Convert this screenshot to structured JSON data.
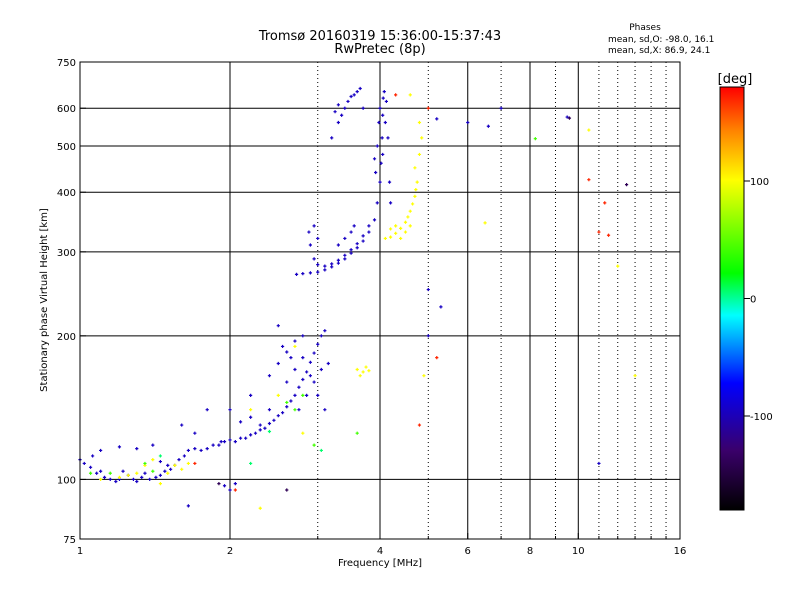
{
  "chart_data": {
    "type": "scatter",
    "title": "Tromsø 20160319 15:36:00-15:37:43",
    "subtitle": "RwPretec (8p)",
    "xlabel": "Frequency [MHz]",
    "ylabel": "Stationary phase Virtual Height [km]",
    "x_scale": "log",
    "y_scale": "log",
    "xlim": [
      1,
      16
    ],
    "ylim": [
      75,
      750
    ],
    "x_ticks": [
      1,
      2,
      4,
      6,
      8,
      10,
      16
    ],
    "x_tick_labels": [
      "1",
      "2",
      "4",
      "6",
      "8",
      "10",
      "16"
    ],
    "x_minor_ticks": [
      3,
      5,
      7,
      9,
      11,
      12,
      13,
      14,
      15
    ],
    "y_ticks": [
      75,
      100,
      200,
      300,
      400,
      500,
      600,
      750
    ],
    "y_tick_labels": [
      "75",
      "100",
      "200",
      "300",
      "400",
      "500",
      "600",
      "750"
    ],
    "grid": true,
    "info": {
      "heading": "Phases",
      "line1": "mean, sd,O: -98.0, 16.1",
      "line2": "mean, sd,X:  86.9, 24.1"
    },
    "colorbar": {
      "label": "[deg]",
      "range": [
        -180,
        180
      ],
      "ticks": [
        100,
        0,
        -100
      ],
      "tick_labels": [
        "100",
        "0",
        "-100"
      ],
      "colors": [
        "#000000",
        "#3a006a",
        "#0000ff",
        "#00ffff",
        "#00ff00",
        "#ffff00",
        "#ff8000",
        "#ff0000"
      ]
    },
    "series": [
      {
        "phase_deg": -100,
        "points": [
          [
            1.02,
            108
          ],
          [
            1.05,
            106
          ],
          [
            1.08,
            103
          ],
          [
            1.1,
            104
          ],
          [
            1.12,
            101
          ],
          [
            1.15,
            100
          ],
          [
            1.18,
            99
          ],
          [
            1.2,
            100
          ],
          [
            1.22,
            104
          ],
          [
            1.25,
            102
          ],
          [
            1.28,
            100
          ],
          [
            1.3,
            99
          ],
          [
            1.33,
            101
          ],
          [
            1.35,
            103
          ],
          [
            1.38,
            100
          ],
          [
            1.42,
            101
          ],
          [
            1.45,
            102
          ],
          [
            1.48,
            104
          ],
          [
            1.52,
            105
          ],
          [
            1.55,
            107
          ],
          [
            1.58,
            110
          ],
          [
            1.62,
            112
          ],
          [
            1.65,
            115
          ],
          [
            1.7,
            116
          ],
          [
            1.75,
            115
          ],
          [
            1.8,
            116
          ],
          [
            1.85,
            118
          ],
          [
            1.9,
            118
          ],
          [
            1.95,
            120
          ],
          [
            2.0,
            121
          ],
          [
            2.05,
            120
          ],
          [
            2.1,
            122
          ],
          [
            2.15,
            122
          ],
          [
            2.2,
            124
          ],
          [
            2.25,
            125
          ],
          [
            2.3,
            127
          ],
          [
            2.35,
            128
          ],
          [
            2.4,
            131
          ],
          [
            2.45,
            133
          ],
          [
            2.5,
            136
          ],
          [
            2.55,
            138
          ],
          [
            2.6,
            142
          ],
          [
            2.65,
            146
          ],
          [
            2.7,
            150
          ],
          [
            2.75,
            156
          ],
          [
            2.8,
            162
          ],
          [
            2.85,
            168
          ],
          [
            2.9,
            176
          ],
          [
            2.95,
            184
          ],
          [
            3.0,
            192
          ],
          [
            3.05,
            200
          ],
          [
            3.1,
            205
          ],
          [
            1.0,
            110
          ],
          [
            1.06,
            112
          ],
          [
            1.1,
            115
          ],
          [
            1.2,
            117
          ],
          [
            1.3,
            116
          ],
          [
            1.4,
            118
          ],
          [
            1.6,
            130
          ],
          [
            1.7,
            125
          ],
          [
            1.8,
            140
          ],
          [
            2.0,
            140
          ],
          [
            2.2,
            150
          ],
          [
            2.4,
            165
          ],
          [
            2.5,
            175
          ],
          [
            2.6,
            185
          ],
          [
            2.7,
            195
          ],
          [
            2.8,
            200
          ],
          [
            2.6,
            160
          ],
          [
            2.7,
            170
          ],
          [
            2.8,
            180
          ],
          [
            2.9,
            165
          ],
          [
            2.55,
            190
          ],
          [
            2.5,
            210
          ],
          [
            2.65,
            180
          ],
          [
            2.75,
            140
          ],
          [
            2.85,
            150
          ],
          [
            2.95,
            160
          ],
          [
            3.05,
            170
          ],
          [
            3.15,
            175
          ],
          [
            2.3,
            130
          ],
          [
            2.2,
            135
          ],
          [
            2.1,
            132
          ],
          [
            2.4,
            140
          ],
          [
            1.95,
            97
          ],
          [
            2.0,
            95
          ],
          [
            2.05,
            98
          ],
          [
            1.65,
            88
          ],
          [
            1.92,
            120
          ],
          [
            1.5,
            107
          ],
          [
            1.45,
            109
          ],
          [
            2.72,
            269
          ],
          [
            2.8,
            270
          ],
          [
            2.9,
            271
          ],
          [
            3.0,
            272
          ],
          [
            3.1,
            275
          ],
          [
            3.2,
            279
          ],
          [
            3.3,
            284
          ],
          [
            3.4,
            290
          ],
          [
            3.5,
            298
          ],
          [
            3.6,
            306
          ],
          [
            3.7,
            316
          ],
          [
            3.8,
            330
          ],
          [
            3.9,
            350
          ],
          [
            3.95,
            380
          ],
          [
            4.0,
            420
          ],
          [
            4.02,
            460
          ],
          [
            4.04,
            520
          ],
          [
            4.05,
            580
          ],
          [
            4.06,
            630
          ],
          [
            2.95,
            290
          ],
          [
            3.0,
            282
          ],
          [
            3.1,
            280
          ],
          [
            3.2,
            283
          ],
          [
            3.3,
            288
          ],
          [
            3.4,
            295
          ],
          [
            3.5,
            303
          ],
          [
            3.6,
            312
          ],
          [
            3.7,
            324
          ],
          [
            3.8,
            340
          ],
          [
            2.9,
            310
          ],
          [
            2.88,
            330
          ],
          [
            2.95,
            340
          ],
          [
            3.0,
            320
          ],
          [
            3.3,
            560
          ],
          [
            3.35,
            580
          ],
          [
            3.4,
            600
          ],
          [
            3.45,
            620
          ],
          [
            3.5,
            635
          ],
          [
            3.55,
            640
          ],
          [
            3.6,
            650
          ],
          [
            3.65,
            660
          ],
          [
            3.3,
            610
          ],
          [
            3.25,
            590
          ],
          [
            3.2,
            520
          ],
          [
            3.7,
            600
          ],
          [
            3.9,
            470
          ],
          [
            3.92,
            440
          ],
          [
            3.95,
            500
          ],
          [
            3.98,
            560
          ],
          [
            4.0,
            600
          ],
          [
            4.08,
            650
          ],
          [
            4.12,
            620
          ],
          [
            4.1,
            560
          ],
          [
            4.15,
            520
          ],
          [
            4.05,
            480
          ],
          [
            4.18,
            420
          ],
          [
            4.2,
            380
          ],
          [
            3.5,
            330
          ],
          [
            3.55,
            340
          ],
          [
            3.4,
            320
          ],
          [
            3.3,
            310
          ],
          [
            5.0,
            200
          ],
          [
            5.0,
            250
          ],
          [
            5.3,
            230
          ],
          [
            5.2,
            570
          ],
          [
            6.0,
            560
          ],
          [
            6.6,
            550
          ],
          [
            9.5,
            575
          ],
          [
            7.0,
            600
          ],
          [
            11.0,
            108
          ],
          [
            3.1,
            140
          ],
          [
            3.0,
            150
          ]
        ]
      },
      {
        "phase_deg": 100,
        "points": [
          [
            4.1,
            320
          ],
          [
            4.2,
            322
          ],
          [
            4.3,
            328
          ],
          [
            4.4,
            336
          ],
          [
            4.5,
            346
          ],
          [
            4.55,
            355
          ],
          [
            4.6,
            365
          ],
          [
            4.65,
            378
          ],
          [
            4.7,
            392
          ],
          [
            4.72,
            405
          ],
          [
            4.75,
            420
          ],
          [
            4.7,
            450
          ],
          [
            4.8,
            480
          ],
          [
            4.85,
            520
          ],
          [
            4.2,
            335
          ],
          [
            4.3,
            340
          ],
          [
            4.4,
            320
          ],
          [
            4.5,
            330
          ],
          [
            4.6,
            340
          ],
          [
            3.6,
            170
          ],
          [
            3.7,
            168
          ],
          [
            3.75,
            172
          ],
          [
            3.8,
            169
          ],
          [
            3.65,
            165
          ],
          [
            1.25,
            102
          ],
          [
            1.3,
            103
          ],
          [
            1.2,
            101
          ],
          [
            1.1,
            100
          ],
          [
            1.45,
            98
          ],
          [
            1.5,
            103
          ],
          [
            1.35,
            107
          ],
          [
            1.4,
            110
          ],
          [
            1.55,
            107
          ],
          [
            1.6,
            105
          ],
          [
            1.65,
            108
          ],
          [
            2.3,
            87
          ],
          [
            2.8,
            125
          ],
          [
            2.2,
            140
          ],
          [
            2.5,
            150
          ],
          [
            2.7,
            190
          ],
          [
            10.5,
            540
          ],
          [
            6.5,
            345
          ],
          [
            4.6,
            640
          ],
          [
            4.8,
            560
          ],
          [
            12.0,
            280
          ],
          [
            13.0,
            165
          ],
          [
            4.9,
            165
          ]
        ]
      },
      {
        "phase_deg": 170,
        "points": [
          [
            10.5,
            425
          ],
          [
            11.3,
            380
          ],
          [
            11.0,
            330
          ],
          [
            11.5,
            325
          ],
          [
            4.8,
            130
          ],
          [
            5.2,
            180
          ],
          [
            4.3,
            640
          ],
          [
            2.05,
            95
          ],
          [
            1.7,
            108
          ],
          [
            5.0,
            600
          ]
        ]
      },
      {
        "phase_deg": 40,
        "points": [
          [
            1.35,
            108
          ],
          [
            1.4,
            104
          ],
          [
            1.15,
            103
          ],
          [
            2.95,
            118
          ],
          [
            2.7,
            140
          ],
          [
            2.6,
            145
          ],
          [
            1.05,
            103
          ],
          [
            3.6,
            125
          ],
          [
            2.8,
            150
          ],
          [
            8.2,
            518
          ]
        ]
      },
      {
        "phase_deg": 5,
        "points": [
          [
            1.45,
            112
          ],
          [
            2.2,
            108
          ],
          [
            3.05,
            115
          ],
          [
            2.4,
            126
          ]
        ]
      },
      {
        "phase_deg": -140,
        "points": [
          [
            9.6,
            572
          ],
          [
            12.5,
            415
          ],
          [
            2.6,
            95
          ],
          [
            1.9,
            98
          ]
        ]
      }
    ]
  }
}
